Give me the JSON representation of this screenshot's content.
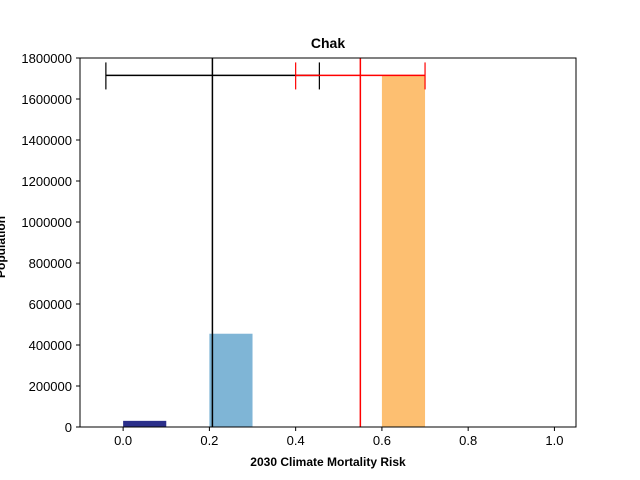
{
  "chart_data": {
    "type": "bar",
    "title": "Chak",
    "xlabel": "2030 Climate Mortality Risk",
    "ylabel": "Population",
    "xlim": [
      -0.1,
      1.05
    ],
    "ylim": [
      0,
      1800000
    ],
    "xticks": [
      0.0,
      0.2,
      0.4,
      0.6,
      0.8,
      1.0
    ],
    "xtick_labels": [
      "0.0",
      "0.2",
      "0.4",
      "0.6",
      "0.8",
      "1.0"
    ],
    "yticks": [
      0,
      200000,
      400000,
      600000,
      800000,
      1000000,
      1200000,
      1400000,
      1600000,
      1800000
    ],
    "ytick_labels": [
      "0",
      "200000",
      "400000",
      "600000",
      "800000",
      "1000000",
      "1200000",
      "1400000",
      "1600000",
      "1800000"
    ],
    "grid": false,
    "bars": [
      {
        "x_start": 0.0,
        "x_end": 0.1,
        "value": 30000,
        "color": "#2b2f8a"
      },
      {
        "x_start": 0.2,
        "x_end": 0.3,
        "value": 455000,
        "color": "#7fb5d6"
      },
      {
        "x_start": 0.6,
        "x_end": 0.7,
        "value": 1715000,
        "color": "#fdbf71"
      }
    ],
    "reference_lines": [
      {
        "x": 0.207,
        "color": "#000000",
        "errorbar": {
          "y": 1715000,
          "xmin": -0.04,
          "xmax": 0.455
        }
      },
      {
        "x": 0.55,
        "color": "#ff0000",
        "errorbar": {
          "y": 1715000,
          "xmin": 0.4,
          "xmax": 0.7
        }
      }
    ]
  }
}
